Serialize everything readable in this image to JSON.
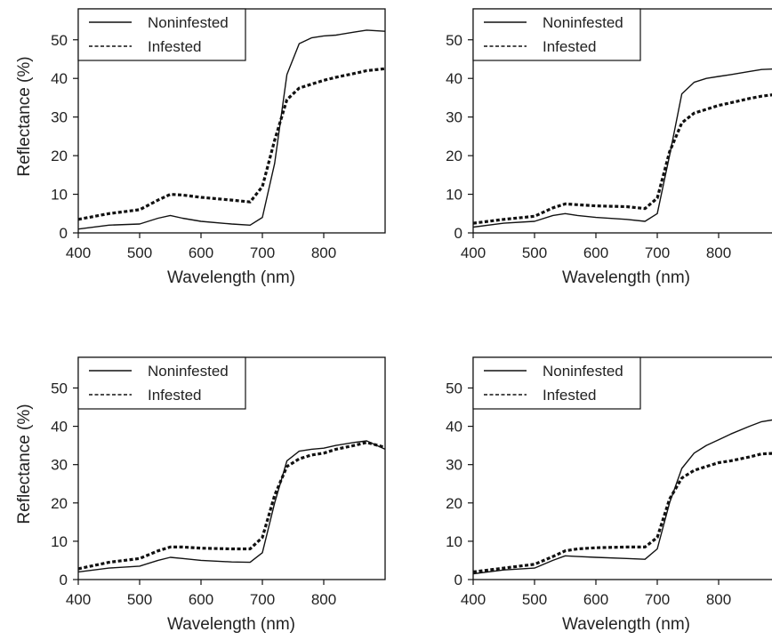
{
  "figure": {
    "legend": {
      "noninfested": "Noninfested",
      "infested": "Infested"
    },
    "colors": {
      "line": "#111111",
      "background": "#ffffff"
    }
  },
  "chart_data": [
    {
      "type": "line",
      "xlabel": "Wavelength (nm)",
      "ylabel": "Reflectance (%)",
      "xlim": [
        400,
        900
      ],
      "ylim": [
        0,
        58
      ],
      "xticks": [
        400,
        500,
        600,
        700,
        800
      ],
      "yticks": [
        0,
        10,
        20,
        30,
        40,
        50
      ],
      "grid": false,
      "legend_position": "top-left",
      "series": [
        {
          "name": "Noninfested",
          "style": "solid",
          "x": [
            400,
            450,
            500,
            530,
            550,
            570,
            600,
            650,
            680,
            700,
            720,
            740,
            760,
            780,
            800,
            820,
            850,
            870,
            900
          ],
          "y": [
            1.0,
            2.0,
            2.3,
            3.8,
            4.5,
            3.8,
            3.0,
            2.3,
            2.0,
            4.0,
            18.0,
            41.0,
            49.0,
            50.5,
            51.0,
            51.2,
            52.0,
            52.5,
            52.2
          ]
        },
        {
          "name": "Infested",
          "style": "dashed",
          "x": [
            400,
            450,
            500,
            530,
            550,
            570,
            600,
            650,
            680,
            700,
            720,
            740,
            760,
            780,
            800,
            820,
            850,
            870,
            900
          ],
          "y": [
            3.5,
            5.0,
            6.0,
            8.5,
            10.0,
            9.8,
            9.2,
            8.5,
            8.0,
            12.0,
            24.0,
            34.5,
            37.5,
            38.5,
            39.5,
            40.3,
            41.3,
            42.0,
            42.5
          ]
        }
      ]
    },
    {
      "type": "line",
      "xlabel": "Wavelength (nm)",
      "ylabel": "",
      "xlim": [
        400,
        900
      ],
      "ylim": [
        0,
        58
      ],
      "xticks": [
        400,
        500,
        600,
        700,
        800
      ],
      "yticks": [
        0,
        10,
        20,
        30,
        40,
        50
      ],
      "grid": false,
      "legend_position": "top-left",
      "series": [
        {
          "name": "Noninfested",
          "style": "solid",
          "x": [
            400,
            450,
            500,
            530,
            550,
            570,
            600,
            650,
            680,
            700,
            720,
            740,
            760,
            780,
            800,
            820,
            850,
            870,
            900
          ],
          "y": [
            1.5,
            2.5,
            3.0,
            4.5,
            5.0,
            4.5,
            4.0,
            3.5,
            3.0,
            5.0,
            20.0,
            36.0,
            39.0,
            40.0,
            40.5,
            41.0,
            41.8,
            42.3,
            42.5
          ]
        },
        {
          "name": "Infested",
          "style": "dashed",
          "x": [
            400,
            450,
            500,
            530,
            550,
            570,
            600,
            650,
            680,
            700,
            720,
            740,
            760,
            780,
            800,
            820,
            850,
            870,
            900
          ],
          "y": [
            2.5,
            3.5,
            4.3,
            6.5,
            7.5,
            7.3,
            7.0,
            6.8,
            6.3,
            9.0,
            21.0,
            28.5,
            31.0,
            32.0,
            33.0,
            33.7,
            34.8,
            35.4,
            36.0
          ]
        }
      ]
    },
    {
      "type": "line",
      "xlabel": "Wavelength (nm)",
      "ylabel": "Reflectance (%)",
      "xlim": [
        400,
        900
      ],
      "ylim": [
        0,
        58
      ],
      "xticks": [
        400,
        500,
        600,
        700,
        800
      ],
      "yticks": [
        0,
        10,
        20,
        30,
        40,
        50
      ],
      "grid": false,
      "legend_position": "top-left",
      "series": [
        {
          "name": "Noninfested",
          "style": "solid",
          "x": [
            400,
            450,
            500,
            530,
            550,
            570,
            600,
            650,
            680,
            700,
            720,
            740,
            760,
            780,
            800,
            820,
            850,
            870,
            900
          ],
          "y": [
            2.0,
            3.0,
            3.5,
            5.0,
            5.8,
            5.5,
            5.0,
            4.6,
            4.5,
            7.0,
            20.0,
            31.0,
            33.5,
            34.0,
            34.3,
            35.0,
            35.8,
            36.2,
            34.0
          ]
        },
        {
          "name": "Infested",
          "style": "dashed",
          "x": [
            400,
            450,
            500,
            530,
            550,
            570,
            600,
            650,
            680,
            700,
            720,
            740,
            760,
            780,
            800,
            820,
            850,
            870,
            900
          ],
          "y": [
            2.8,
            4.5,
            5.5,
            7.5,
            8.5,
            8.5,
            8.2,
            8.0,
            8.0,
            11.0,
            22.0,
            29.5,
            31.5,
            32.5,
            33.0,
            34.0,
            35.0,
            35.8,
            34.5
          ]
        }
      ]
    },
    {
      "type": "line",
      "xlabel": "Wavelength (nm)",
      "ylabel": "",
      "xlim": [
        400,
        900
      ],
      "ylim": [
        0,
        58
      ],
      "xticks": [
        400,
        500,
        600,
        700,
        800
      ],
      "yticks": [
        0,
        10,
        20,
        30,
        40,
        50
      ],
      "grid": false,
      "legend_position": "top-left",
      "series": [
        {
          "name": "Noninfested",
          "style": "solid",
          "x": [
            400,
            450,
            500,
            530,
            550,
            570,
            600,
            650,
            680,
            700,
            720,
            740,
            760,
            780,
            800,
            820,
            850,
            870,
            900
          ],
          "y": [
            1.5,
            2.5,
            3.0,
            5.0,
            6.2,
            6.0,
            5.8,
            5.5,
            5.3,
            8.0,
            20.0,
            29.0,
            33.0,
            35.0,
            36.5,
            38.0,
            40.0,
            41.2,
            42.0
          ]
        },
        {
          "name": "Infested",
          "style": "dashed",
          "x": [
            400,
            450,
            500,
            530,
            550,
            570,
            600,
            650,
            680,
            700,
            720,
            740,
            760,
            780,
            800,
            820,
            850,
            870,
            900
          ],
          "y": [
            2.0,
            3.0,
            4.0,
            6.0,
            7.5,
            8.0,
            8.3,
            8.5,
            8.5,
            11.0,
            21.0,
            26.5,
            28.5,
            29.5,
            30.5,
            31.0,
            32.0,
            32.8,
            33.0
          ]
        }
      ]
    }
  ]
}
